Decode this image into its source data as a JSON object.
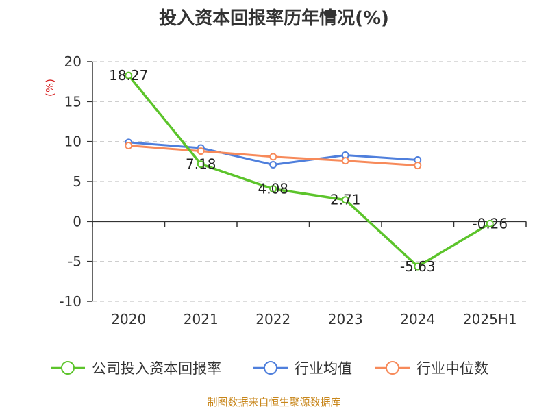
{
  "title": "投入资本回报率历年情况(%)",
  "source": "制图数据来自恒生聚源数据库",
  "colors": {
    "company": "#5cc42b",
    "industry_avg": "#4f7fdc",
    "industry_median": "#f78a5a",
    "unit": "#d61f1f",
    "grid": "#c8c8c8",
    "axis": "#333333"
  },
  "chart_data": {
    "type": "line",
    "title": "投入资本回报率历年情况(%)",
    "ylabel": "(%)",
    "xlabel": "",
    "categories": [
      "2020",
      "2021",
      "2022",
      "2023",
      "2024",
      "2025H1"
    ],
    "ylim": [
      -10,
      20
    ],
    "yticks": [
      "-10",
      "-5",
      "0",
      "5",
      "10",
      "15",
      "20"
    ],
    "grid": "horizontal dashed",
    "legend_position": "bottom",
    "series": [
      {
        "name": "公司投入资本回报率",
        "color": "#5cc42b",
        "values": [
          18.27,
          7.18,
          4.08,
          2.71,
          -5.63,
          -0.26
        ],
        "labels": [
          "18.27",
          "7.18",
          "4.08",
          "2.71",
          "-5.63",
          "-0.26"
        ]
      },
      {
        "name": "行业均值",
        "color": "#4f7fdc",
        "values": [
          9.9,
          9.2,
          7.1,
          8.3,
          7.7,
          null
        ]
      },
      {
        "name": "行业中位数",
        "color": "#f78a5a",
        "values": [
          9.5,
          8.8,
          8.1,
          7.6,
          7.0,
          null
        ]
      }
    ]
  }
}
